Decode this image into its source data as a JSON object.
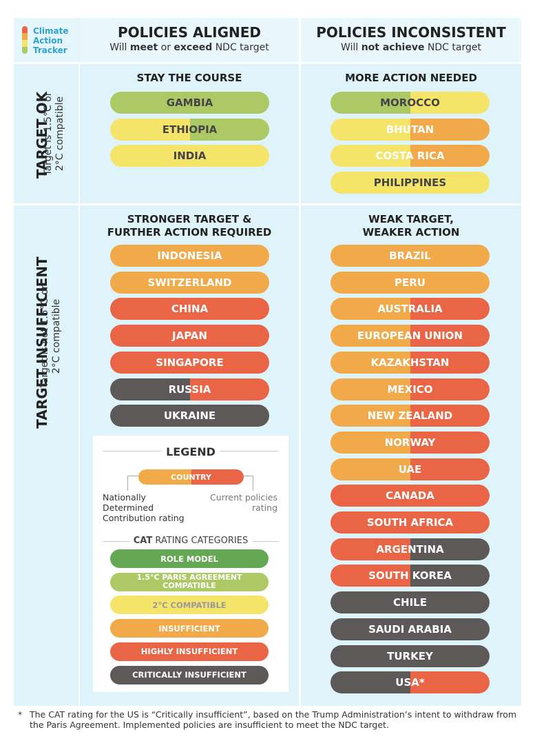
{
  "logo": {
    "line1": "Climate",
    "line2": "Action",
    "line3": "Tracker"
  },
  "header": {
    "aligned_title": "POLICIES ALIGNED",
    "aligned_sub_pre": "Will ",
    "aligned_sub_bold1": "meet",
    "aligned_sub_mid": " or ",
    "aligned_sub_bold2": "exceed",
    "aligned_sub_post": " NDC target",
    "inconsistent_title": "POLICIES INCONSISTENT",
    "inconsistent_sub_pre": "Will ",
    "inconsistent_sub_bold": "not achieve",
    "inconsistent_sub_post": " NDC target"
  },
  "rows": {
    "ok_title": "TARGET OK",
    "ok_sub1": "Target is 1.5°C or",
    "ok_sub2": "2°C compatible",
    "insufficient_title": "TARGET INSUFFICIENT",
    "insufficient_sub1": "Target is not 1.5°C or",
    "insufficient_sub2": "2°C compatible"
  },
  "colors": {
    "role_model": "#64a853",
    "paris": "#adc965",
    "two_c": "#f4e46a",
    "insufficient": "#f1a949",
    "highly": "#ea6546",
    "critically": "#5d5959",
    "bg": "#dff3fa"
  },
  "quadrants": {
    "stay": {
      "title": "STAY THE COURSE",
      "items": [
        {
          "name": "GAMBIA",
          "left": "paris",
          "right": "paris"
        },
        {
          "name": "ETHIOPIA",
          "left": "two_c",
          "right": "paris"
        },
        {
          "name": "INDIA",
          "left": "two_c",
          "right": "two_c"
        }
      ]
    },
    "more": {
      "title": "MORE ACTION NEEDED",
      "items": [
        {
          "name": "MOROCCO",
          "left": "paris",
          "right": "two_c"
        },
        {
          "name": "BHUTAN",
          "left": "two_c",
          "right": "insufficient"
        },
        {
          "name": "COSTA RICA",
          "left": "two_c",
          "right": "insufficient"
        },
        {
          "name": "PHILIPPINES",
          "left": "two_c",
          "right": "two_c"
        }
      ]
    },
    "stronger": {
      "title1": "STRONGER TARGET &",
      "title2": "FURTHER ACTION REQUIRED",
      "items": [
        {
          "name": "INDONESIA",
          "left": "insufficient",
          "right": "insufficient"
        },
        {
          "name": "SWITZERLAND",
          "left": "insufficient",
          "right": "insufficient"
        },
        {
          "name": "CHINA",
          "left": "highly",
          "right": "highly"
        },
        {
          "name": "JAPAN",
          "left": "highly",
          "right": "highly"
        },
        {
          "name": "SINGAPORE",
          "left": "highly",
          "right": "highly"
        },
        {
          "name": "RUSSIA",
          "left": "critically",
          "right": "highly"
        },
        {
          "name": "UKRAINE",
          "left": "critically",
          "right": "critically"
        }
      ]
    },
    "weak": {
      "title1": "WEAK TARGET,",
      "title2": "WEAKER ACTION",
      "items": [
        {
          "name": "BRAZIL",
          "left": "insufficient",
          "right": "insufficient"
        },
        {
          "name": "PERU",
          "left": "insufficient",
          "right": "insufficient"
        },
        {
          "name": "AUSTRALIA",
          "left": "insufficient",
          "right": "highly"
        },
        {
          "name": "EUROPEAN UNION",
          "left": "insufficient",
          "right": "highly"
        },
        {
          "name": "KAZAKHSTAN",
          "left": "insufficient",
          "right": "highly"
        },
        {
          "name": "MEXICO",
          "left": "insufficient",
          "right": "highly"
        },
        {
          "name": "NEW ZEALAND",
          "left": "insufficient",
          "right": "highly"
        },
        {
          "name": "NORWAY",
          "left": "insufficient",
          "right": "highly"
        },
        {
          "name": "UAE",
          "left": "insufficient",
          "right": "highly"
        },
        {
          "name": "CANADA",
          "left": "highly",
          "right": "highly"
        },
        {
          "name": "SOUTH AFRICA",
          "left": "highly",
          "right": "highly"
        },
        {
          "name": "ARGENTINA",
          "left": "highly",
          "right": "critically"
        },
        {
          "name": "SOUTH KOREA",
          "left": "highly",
          "right": "critically"
        },
        {
          "name": "CHILE",
          "left": "critically",
          "right": "critically"
        },
        {
          "name": "SAUDI ARABIA",
          "left": "critically",
          "right": "critically"
        },
        {
          "name": "TURKEY",
          "left": "critically",
          "right": "critically"
        },
        {
          "name": "USA*",
          "left": "critically",
          "right": "highly"
        }
      ]
    }
  },
  "legend": {
    "title": "LEGEND",
    "sample_country": "COUNTRY",
    "ndc_line1": "Nationally",
    "ndc_line2": "Determined",
    "ndc_line3": "Contribution rating",
    "policies_line1": "Current policies",
    "policies_line2": "rating",
    "categories_bold": "CAT",
    "categories_rest": " RATING CATEGORIES",
    "categories": [
      {
        "label": "ROLE MODEL",
        "color": "role_model"
      },
      {
        "label": "1.5°C PARIS AGREEMENT COMPATIBLE",
        "color": "paris"
      },
      {
        "label": "2°C COMPATIBLE",
        "color": "two_c"
      },
      {
        "label": "INSUFFICIENT",
        "color": "insufficient"
      },
      {
        "label": "HIGHLY INSUFFICIENT",
        "color": "highly"
      },
      {
        "label": "CRITICALLY INSUFFICIENT",
        "color": "critically"
      }
    ]
  },
  "footnote": {
    "marker": "*",
    "text": "The CAT rating for the US is “Critically insufficient”, based on the Trump Administration’s intent to withdraw from the Paris Agreement. Implemented policies are insufficient to meet the NDC target."
  }
}
